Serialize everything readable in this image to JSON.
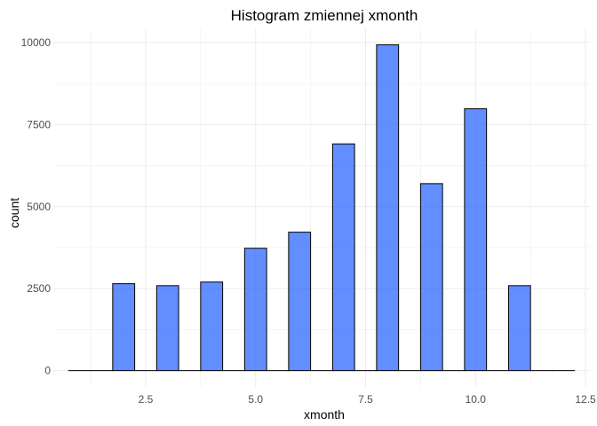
{
  "chart_data": {
    "type": "bar",
    "title": "Histogram zmiennej  xmonth",
    "xlabel": "xmonth",
    "ylabel": "count",
    "bins": [
      {
        "x": 1.0,
        "count": 0
      },
      {
        "x": 1.5,
        "count": 0
      },
      {
        "x": 2.0,
        "count": 2650
      },
      {
        "x": 2.5,
        "count": 0
      },
      {
        "x": 3.0,
        "count": 2590
      },
      {
        "x": 3.5,
        "count": 0
      },
      {
        "x": 4.0,
        "count": 2700
      },
      {
        "x": 4.5,
        "count": 0
      },
      {
        "x": 5.0,
        "count": 3730
      },
      {
        "x": 5.5,
        "count": 0
      },
      {
        "x": 6.0,
        "count": 4220
      },
      {
        "x": 6.5,
        "count": 0
      },
      {
        "x": 7.0,
        "count": 6910
      },
      {
        "x": 7.5,
        "count": 0
      },
      {
        "x": 8.0,
        "count": 9930
      },
      {
        "x": 8.5,
        "count": 0
      },
      {
        "x": 9.0,
        "count": 5700
      },
      {
        "x": 9.5,
        "count": 0
      },
      {
        "x": 10.0,
        "count": 7980
      },
      {
        "x": 10.5,
        "count": 0
      },
      {
        "x": 11.0,
        "count": 2590
      },
      {
        "x": 11.5,
        "count": 0
      },
      {
        "x": 12.0,
        "count": 0
      }
    ],
    "bin_width": 0.5,
    "xlim": [
      0.4,
      12.6
    ],
    "ylim": [
      -497,
      10430
    ],
    "x_ticks": [
      2.5,
      5.0,
      7.5,
      10.0,
      12.5
    ],
    "x_tick_labels": [
      "2.5",
      "5.0",
      "7.5",
      "10.0",
      "12.5"
    ],
    "y_ticks": [
      0,
      2500,
      5000,
      7500,
      10000
    ],
    "y_tick_labels": [
      "0",
      "2500",
      "5000",
      "7500",
      "10000"
    ],
    "grid": true,
    "fill_color": "#1f5eff",
    "fill_opacity": 0.7,
    "outline_color": "#000000",
    "background": "#ffffff"
  }
}
